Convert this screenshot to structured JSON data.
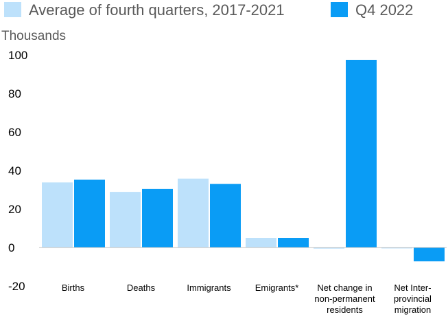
{
  "chart_data": {
    "type": "bar",
    "title": "",
    "ylabel": "Thousands",
    "xlabel": "",
    "ylim": [
      -20,
      100
    ],
    "yticks": [
      100,
      80,
      60,
      40,
      20,
      0,
      -20
    ],
    "categories": [
      [
        "Births"
      ],
      [
        "Deaths"
      ],
      [
        "Immigrants"
      ],
      [
        "Emigrants*"
      ],
      [
        "Net change in",
        "non-permanent",
        "residents"
      ],
      [
        "Net Inter-",
        "provincial",
        "migration"
      ]
    ],
    "series": [
      {
        "name": "Average of fourth quarters, 2017-2021",
        "color": "#bde1fb",
        "values": [
          33.8,
          28.9,
          35.8,
          5.0,
          -0.6,
          -0.5
        ]
      },
      {
        "name": "Q4 2022",
        "color": "#0a9cf5",
        "values": [
          35.2,
          30.4,
          33.0,
          5.0,
          97.5,
          -7.2
        ]
      }
    ],
    "legend_position": "top",
    "grid": false
  }
}
